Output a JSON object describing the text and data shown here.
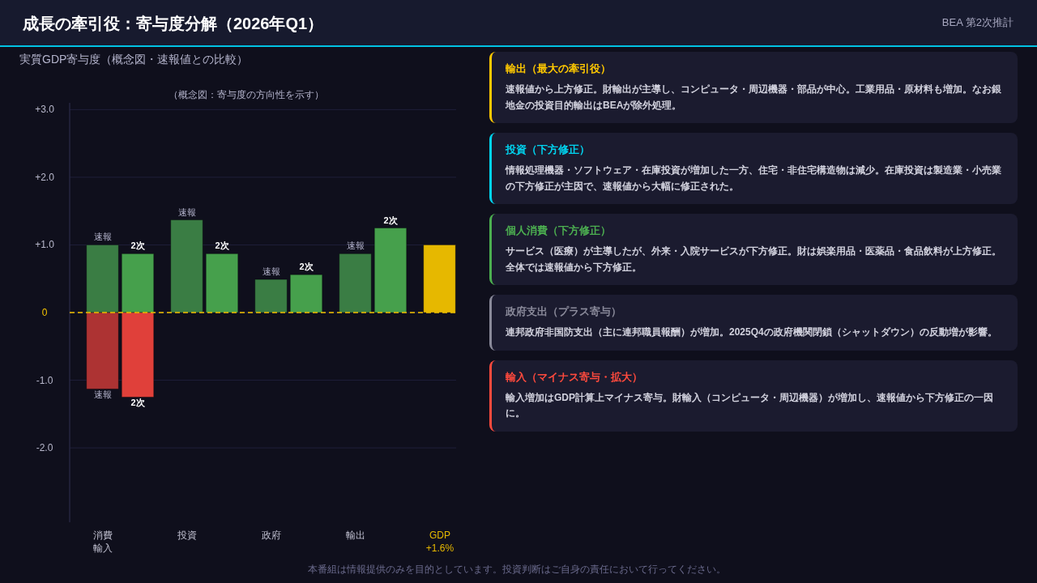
{
  "chart_data": [
    {
      "type": "bar",
      "title": "成長の牽引役：寄与度分解（2026年Q1）",
      "subtitle": "実質GDP寄与度（概念図・速報値との比較）",
      "categories": [
        "消費輸入",
        "投資",
        "政府",
        "輸出",
        "GDP +1.6%"
      ],
      "series": [
        {
          "name": "速報",
          "color": "#3a7d44",
          "values": [
            1.0,
            1.37,
            0.49,
            0.87,
            null
          ]
        },
        {
          "name": "2次",
          "color": "#46a04c",
          "values": [
            0.87,
            0.87,
            0.56,
            1.25,
            null
          ]
        },
        {
          "name": "速報",
          "color": "#ad3333",
          "values": [
            -1.13,
            null,
            null,
            null,
            null
          ]
        },
        {
          "name": "2次",
          "color": "#e0403a",
          "values": [
            -1.25,
            null,
            null,
            null,
            null
          ]
        },
        {
          "color": "#e6b800",
          "values": [
            null,
            null,
            null,
            null,
            1.0
          ]
        }
      ],
      "ylim": [
        -3.1,
        3.1
      ],
      "yticks": [
        {
          "value": 3,
          "label": "+3.0"
        },
        {
          "value": 2,
          "label": "+2.0"
        },
        {
          "value": 1,
          "label": "+1.0"
        },
        0,
        {
          "value": -1,
          "label": "-1.0"
        },
        {
          "value": -2,
          "label": "-2.0"
        }
      ],
      "grid": "y",
      "ref_lines": [
        {
          "axis": "y",
          "value": 0,
          "color": "#f5c400",
          "line_style": "dashed"
        }
      ],
      "annotations": [
        "（概念図：寄与度の方向性を示す）",
        "BEA 第2次推計",
        "本番組は情報提供のみを目的としています。投資判断はご自身の責任において行ってください。"
      ]
    },
    {
      "type": "other",
      "annotations": [
        "輸出（最大の牽引役）",
        "速報値から上方修正。財輸出が主導し、コンピュータ・周辺機器・部品が中心。工業用品・原材料も増加。なお銀地金の投資目的輸出はBEAが除外処理。",
        "投資（下方修正）",
        "情報処理機器・ソフトウェア・在庫投資が増加した一方、住宅・非住宅構造物は減少。在庫投資は製造業・小売業の下方修正が主因で、速報値から大幅に修正された。",
        "個人消費（下方修正）",
        "サービス（医療）が主導したが、外来・入院サービスが下方修正。財は娯楽用品・医薬品・食品飲料が上方修正。全体では速報値から下方修正。",
        "政府支出（プラス寄与）",
        "連邦政府非国防支出（主に連邦職員報酬）が増加。2025Q4の政府機関閉鎖（シャットダウン）の反動増が影響。",
        "輸入（マイナス寄与・拡大）",
        "輸入増加はGDP計算上マイナス寄与。財輸入（コンピュータ・周辺機器）が増加し、速報値から下方修正の一因に。"
      ],
      "colors": [
        "#ffc800",
        "#00d4f0",
        "#4caf50",
        "#8a8a9a",
        "#ff4a3d"
      ]
    }
  ]
}
